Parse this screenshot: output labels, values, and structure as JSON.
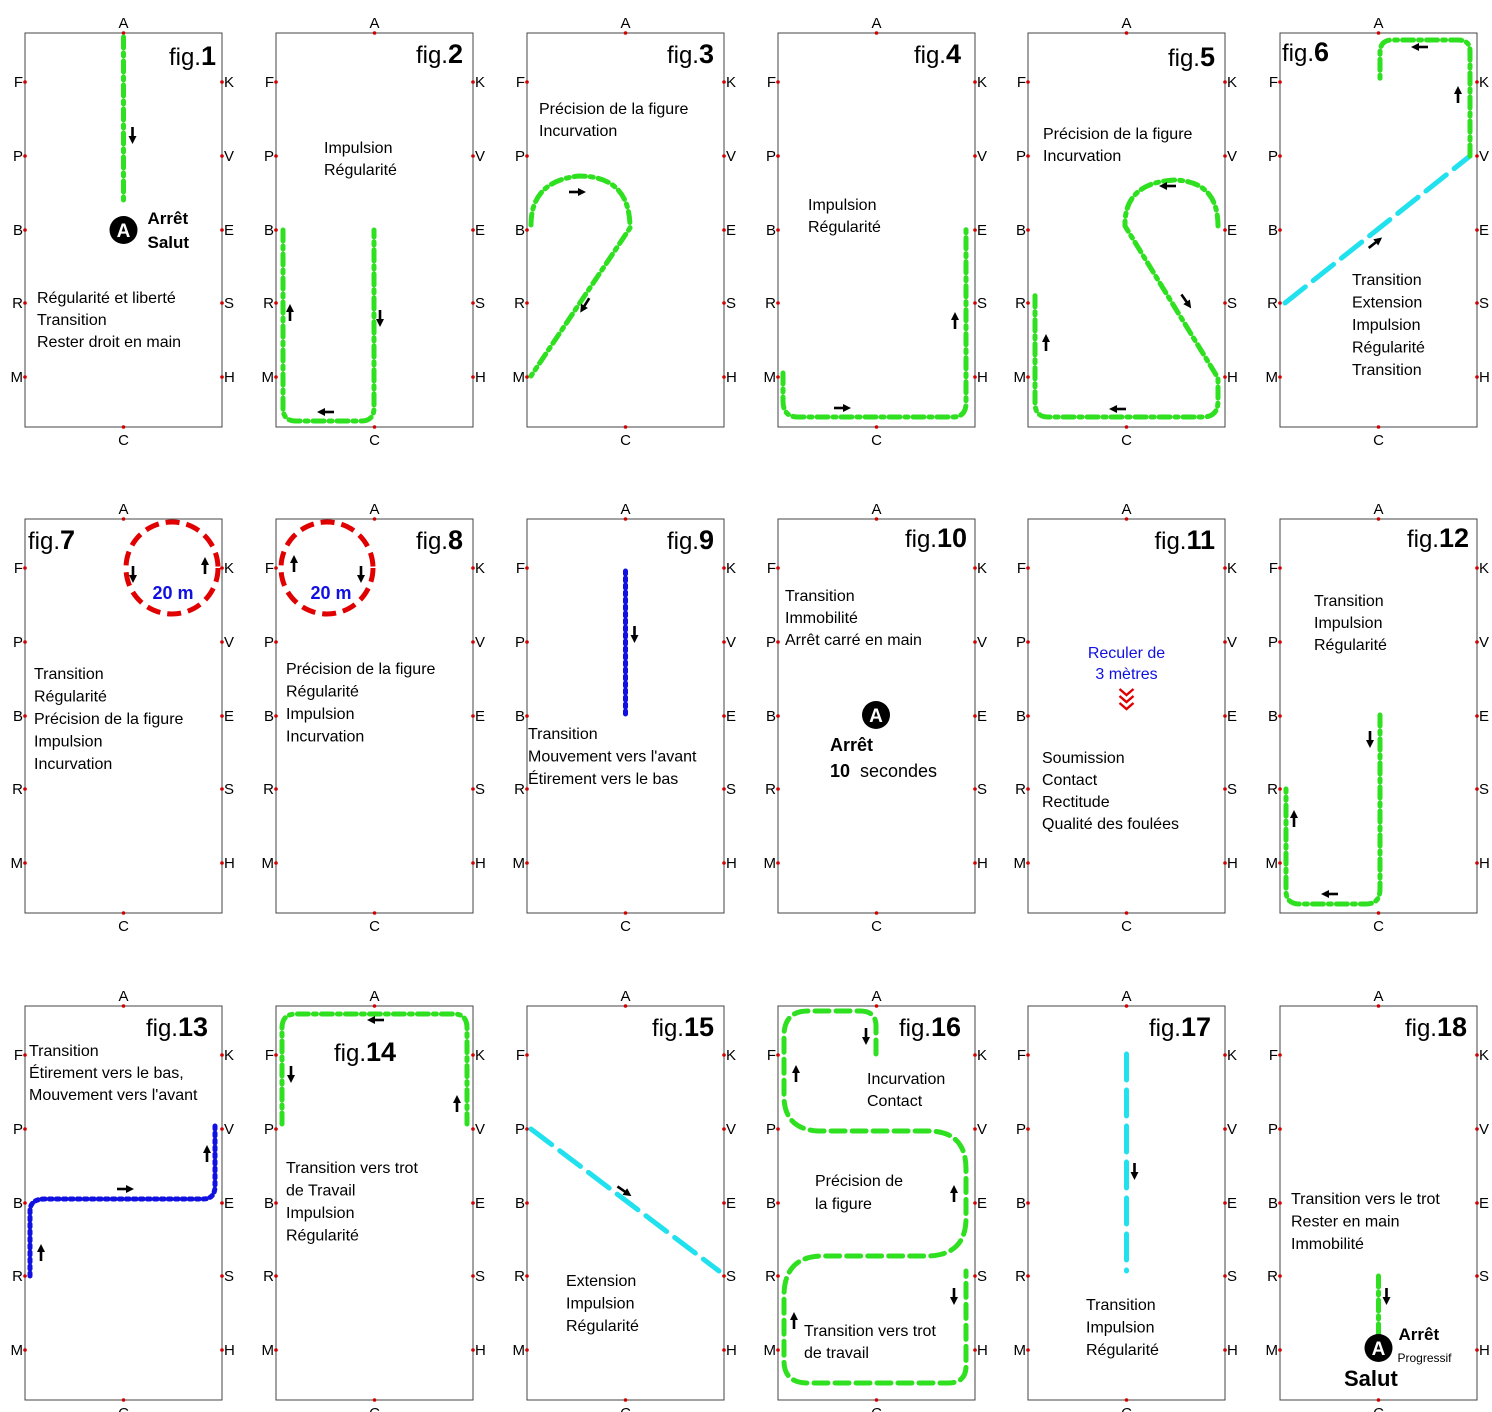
{
  "letters": {
    "A": "A",
    "C": "C",
    "F": "F",
    "K": "K",
    "P": "P",
    "V": "V",
    "B": "B",
    "E": "E",
    "R": "R",
    "S": "S",
    "M": "M",
    "H": "H"
  },
  "fig_prefix": "fig.",
  "colors": {
    "green": "#2ee01f",
    "blue": "#1010e0",
    "red": "#e00000",
    "cyan": "#21e1ee",
    "marker": "#d00000"
  },
  "figures": [
    {
      "num": "1",
      "lines": [
        "Régularité et liberté",
        "Transition",
        "Rester droit en main"
      ],
      "badge": "A",
      "extra": [
        "Arrêt",
        "Salut"
      ]
    },
    {
      "num": "2",
      "lines": [
        "Impulsion",
        "Régularité"
      ]
    },
    {
      "num": "3",
      "lines": [
        "Précision de la figure",
        "Incurvation"
      ]
    },
    {
      "num": "4",
      "lines": [
        "Impulsion",
        "Régularité"
      ]
    },
    {
      "num": "5",
      "lines": [
        "Précision de la figure",
        "Incurvation"
      ]
    },
    {
      "num": "6",
      "lines": [
        "Transition",
        "Extension",
        "Impulsion",
        "Régularité",
        "Transition"
      ]
    },
    {
      "num": "7",
      "lines": [
        "Transition",
        "Régularité",
        "Précision de la figure",
        "Impulsion",
        "Incurvation"
      ],
      "extra": [
        "20 m"
      ]
    },
    {
      "num": "8",
      "lines": [
        "Précision de la figure",
        "Régularité",
        "Impulsion",
        "Incurvation"
      ],
      "extra": [
        "20 m"
      ]
    },
    {
      "num": "9",
      "lines": [
        "Transition",
        "Mouvement vers l'avant",
        "Étirement vers le bas"
      ]
    },
    {
      "num": "10",
      "lines": [
        "Transition",
        "Immobilité",
        "Arrêt carré en main"
      ],
      "badge": "A",
      "extra": [
        "Arrêt",
        "10",
        "secondes"
      ]
    },
    {
      "num": "11",
      "lines": [
        "Soumission",
        "Contact",
        "Rectitude",
        "Qualité des foulées"
      ],
      "extra": [
        "Reculer de",
        "3 mètres"
      ]
    },
    {
      "num": "12",
      "lines": [
        "Transition",
        "Impulsion",
        "Régularité"
      ]
    },
    {
      "num": "13",
      "lines": [
        "Transition",
        "Étirement vers le bas,",
        "Mouvement vers l'avant"
      ]
    },
    {
      "num": "14",
      "lines": [
        "Transition vers trot",
        "de Travail",
        "Impulsion",
        "Régularité"
      ],
      "extra": [
        "fig.",
        "14"
      ]
    },
    {
      "num": "15",
      "lines": [
        "Extension",
        "Impulsion",
        "Régularité"
      ]
    },
    {
      "num": "16",
      "lines": [
        "Incurvation",
        "Contact",
        "Précision de",
        "la figure",
        "Transition vers trot",
        "de travail"
      ]
    },
    {
      "num": "17",
      "lines": [
        "Transition",
        "Impulsion",
        "Régularité"
      ]
    },
    {
      "num": "18",
      "lines": [
        "Transition vers le trot",
        "Rester en main",
        "Immobilité"
      ],
      "badge": "A",
      "extra": [
        "Arrêt",
        "Progressif",
        "Salut"
      ]
    }
  ]
}
